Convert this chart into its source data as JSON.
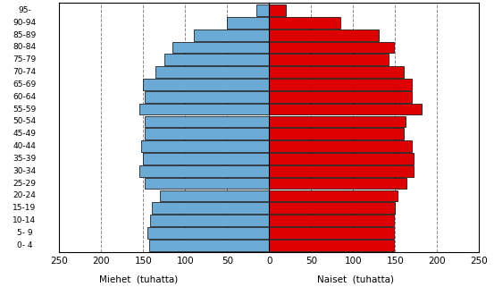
{
  "age_groups": [
    "0- 4",
    "5- 9",
    "10-14",
    "15-19",
    "20-24",
    "25-29",
    "30-34",
    "35-39",
    "40-44",
    "45-49",
    "50-54",
    "55-59",
    "60-64",
    "65-69",
    "70-74",
    "75-79",
    "80-84",
    "85-89",
    "90-94",
    "95-"
  ],
  "males": [
    143,
    145,
    142,
    140,
    130,
    148,
    155,
    150,
    152,
    148,
    148,
    155,
    148,
    150,
    135,
    125,
    115,
    90,
    50,
    15
  ],
  "females": [
    148,
    148,
    148,
    150,
    153,
    163,
    172,
    172,
    170,
    160,
    162,
    182,
    170,
    170,
    160,
    142,
    148,
    130,
    85,
    20
  ],
  "male_color": "#6aaad4",
  "female_color": "#dd0000",
  "xlim": 250,
  "xlabel_male": "Miehet  (tuhatta)",
  "xlabel_female": "Naiset  (tuhatta)",
  "grid_color": "#888888",
  "background_color": "#ffffff",
  "bar_edge_color": "#000000",
  "bar_linewidth": 0.5
}
